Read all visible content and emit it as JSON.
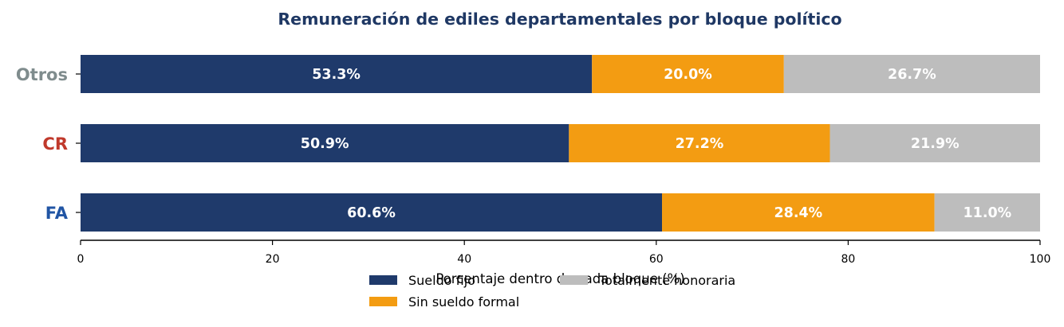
{
  "chart_data": {
    "type": "bar",
    "orientation": "horizontal",
    "stacked": true,
    "title": "Remuneración de ediles departamentales por bloque político",
    "xlabel": "Porcentaje dentro de cada bloque (%)",
    "ylabel": "",
    "xlim": [
      0,
      100
    ],
    "xticks": [
      "0",
      "20",
      "40",
      "60",
      "80",
      "100"
    ],
    "grid": false,
    "legend_position": "bottom-center",
    "categories": [
      "Otros",
      "CR",
      "FA"
    ],
    "category_colors": [
      "#7f8c8d",
      "#c0392b",
      "#2155a4"
    ],
    "series": [
      {
        "name": "Sueldo fijo",
        "color": "#1f3a6b",
        "values": [
          53.3,
          50.9,
          60.6
        ],
        "labels": [
          "53.3%",
          "50.9%",
          "60.6%"
        ]
      },
      {
        "name": "Sin sueldo formal",
        "color": "#f39c12",
        "values": [
          20.0,
          27.2,
          28.4
        ],
        "labels": [
          "20.0%",
          "27.2%",
          "28.4%"
        ]
      },
      {
        "name": "Totalmente honoraria",
        "color": "#bdbdbd",
        "values": [
          26.7,
          21.9,
          11.0
        ],
        "labels": [
          "26.7%",
          "21.9%",
          "11.0%"
        ]
      }
    ]
  }
}
